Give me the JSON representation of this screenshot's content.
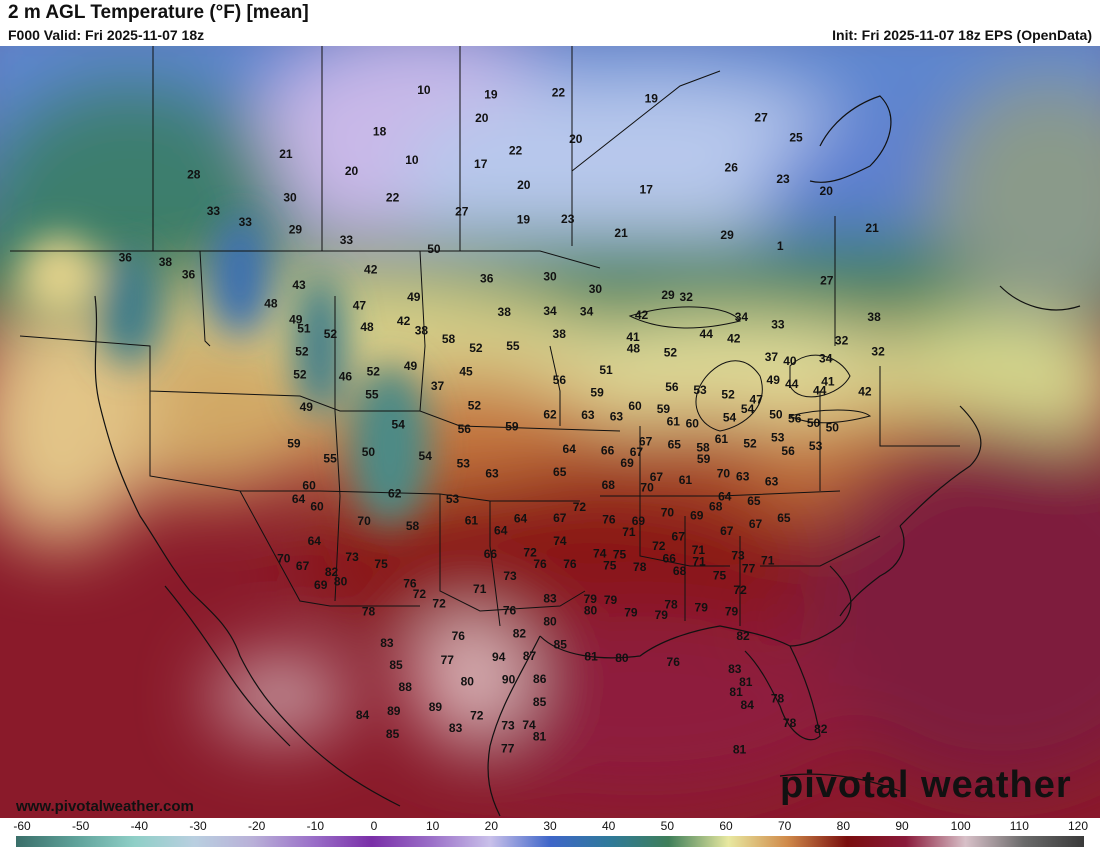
{
  "header": {
    "title": "2 m AGL Temperature (°F) [mean]",
    "valid": "F000 Valid: Fri 2025-11-07 18z",
    "init": "Init: Fri 2025-11-07 18z EPS (OpenData)"
  },
  "footer": {
    "credit": "www.pivotalweather.com",
    "brand": "pivotal weather"
  },
  "colorbar": {
    "ticks": [
      "-60",
      "-50",
      "-40",
      "-30",
      "-20",
      "-10",
      "0",
      "10",
      "20",
      "30",
      "40",
      "50",
      "60",
      "70",
      "80",
      "90",
      "100",
      "110",
      "120"
    ],
    "stops": [
      "#3a6f6a",
      "#5fa29a",
      "#8fcfc7",
      "#b9cfe0",
      "#b9b0d8",
      "#9a6fc8",
      "#7a2fa8",
      "#9b6fc8",
      "#c9c0ea",
      "#3f66c9",
      "#2f7a9a",
      "#3f7f5a",
      "#e8e8a0",
      "#d08a4a",
      "#7a0e0e",
      "#8a1a3a",
      "#d8c0c8",
      "#6a6a6a",
      "#3a3a3a"
    ]
  },
  "map": {
    "legend_label": "°F",
    "points": [
      {
        "v": "28",
        "lon": -139,
        "lat": 62
      },
      {
        "v": "21",
        "lon": -128,
        "lat": 61
      },
      {
        "v": "10",
        "lon": -112,
        "lat": 64
      },
      {
        "v": "19",
        "lon": -104,
        "lat": 63
      },
      {
        "v": "22",
        "lon": -96,
        "lat": 63
      },
      {
        "v": "19",
        "lon": -85,
        "lat": 63
      },
      {
        "v": "27",
        "lon": -72,
        "lat": 63
      },
      {
        "v": "25",
        "lon": -68,
        "lat": 62
      },
      {
        "v": "36",
        "lon": -146,
        "lat": 57
      },
      {
        "v": "33",
        "lon": -136,
        "lat": 58
      },
      {
        "v": "18",
        "lon": -117,
        "lat": 61
      },
      {
        "v": "20",
        "lon": -105,
        "lat": 61
      },
      {
        "v": "38",
        "lon": -141,
        "lat": 55
      },
      {
        "v": "33",
        "lon": -132,
        "lat": 56
      },
      {
        "v": "30",
        "lon": -127,
        "lat": 57
      },
      {
        "v": "20",
        "lon": -120,
        "lat": 58
      },
      {
        "v": "10",
        "lon": -113,
        "lat": 58
      },
      {
        "v": "17",
        "lon": -105,
        "lat": 57
      },
      {
        "v": "22",
        "lon": -101,
        "lat": 58
      },
      {
        "v": "20",
        "lon": -94,
        "lat": 59
      },
      {
        "v": "26",
        "lon": -76,
        "lat": 58
      },
      {
        "v": "23",
        "lon": -70,
        "lat": 58
      },
      {
        "v": "20",
        "lon": -65,
        "lat": 58
      },
      {
        "v": "21",
        "lon": -60,
        "lat": 56
      },
      {
        "v": "36",
        "lon": -138,
        "lat": 53
      },
      {
        "v": "29",
        "lon": -126,
        "lat": 54
      },
      {
        "v": "22",
        "lon": -115,
        "lat": 55
      },
      {
        "v": "20",
        "lon": -100,
        "lat": 55
      },
      {
        "v": "17",
        "lon": -86,
        "lat": 55
      },
      {
        "v": "48",
        "lon": -128,
        "lat": 48
      },
      {
        "v": "43",
        "lon": -125,
        "lat": 49
      },
      {
        "v": "33",
        "lon": -120,
        "lat": 52
      },
      {
        "v": "50",
        "lon": -110,
        "lat": 50
      },
      {
        "v": "27",
        "lon": -107,
        "lat": 53
      },
      {
        "v": "19",
        "lon": -100,
        "lat": 52
      },
      {
        "v": "23",
        "lon": -95,
        "lat": 52
      },
      {
        "v": "21",
        "lon": -89,
        "lat": 51
      },
      {
        "v": "29",
        "lon": -77,
        "lat": 52
      },
      {
        "v": "1",
        "lon": -71,
        "lat": 52
      },
      {
        "v": "27",
        "lon": -66,
        "lat": 50
      },
      {
        "v": "38",
        "lon": -61,
        "lat": 48
      },
      {
        "v": "49",
        "lon": -125,
        "lat": 46
      },
      {
        "v": "42",
        "lon": -117,
        "lat": 49
      },
      {
        "v": "51",
        "lon": -124,
        "lat": 45
      },
      {
        "v": "47",
        "lon": -118,
        "lat": 46
      },
      {
        "v": "49",
        "lon": -112,
        "lat": 46
      },
      {
        "v": "36",
        "lon": -104,
        "lat": 47
      },
      {
        "v": "30",
        "lon": -97,
        "lat": 47
      },
      {
        "v": "30",
        "lon": -92,
        "lat": 46
      },
      {
        "v": "29",
        "lon": -84,
        "lat": 46
      },
      {
        "v": "32",
        "lon": -82,
        "lat": 46
      },
      {
        "v": "34",
        "lon": -76,
        "lat": 45
      },
      {
        "v": "33",
        "lon": -72,
        "lat": 45
      },
      {
        "v": "32",
        "lon": -65,
        "lat": 45
      },
      {
        "v": "32",
        "lon": -61,
        "lat": 45
      },
      {
        "v": "52",
        "lon": -121,
        "lat": 44
      },
      {
        "v": "48",
        "lon": -117,
        "lat": 44
      },
      {
        "v": "42",
        "lon": -113,
        "lat": 44
      },
      {
        "v": "38",
        "lon": -102,
        "lat": 44
      },
      {
        "v": "34",
        "lon": -97,
        "lat": 44
      },
      {
        "v": "34",
        "lon": -93,
        "lat": 44
      },
      {
        "v": "42",
        "lon": -87,
        "lat": 44
      },
      {
        "v": "44",
        "lon": -80,
        "lat": 43
      },
      {
        "v": "42",
        "lon": -77,
        "lat": 43
      },
      {
        "v": "34",
        "lon": -67,
        "lat": 43
      },
      {
        "v": "52",
        "lon": -124,
        "lat": 43
      },
      {
        "v": "38",
        "lon": -111,
        "lat": 43
      },
      {
        "v": "58",
        "lon": -108,
        "lat": 42
      },
      {
        "v": "38",
        "lon": -96,
        "lat": 42
      },
      {
        "v": "41",
        "lon": -88,
        "lat": 42
      },
      {
        "v": "37",
        "lon": -73,
        "lat": 42
      },
      {
        "v": "40",
        "lon": -71,
        "lat": 42
      },
      {
        "v": "41",
        "lon": -67,
        "lat": 41
      },
      {
        "v": "42",
        "lon": -63,
        "lat": 41
      },
      {
        "v": "52",
        "lon": -124,
        "lat": 41
      },
      {
        "v": "46",
        "lon": -119,
        "lat": 40
      },
      {
        "v": "52",
        "lon": -116,
        "lat": 40
      },
      {
        "v": "49",
        "lon": -112,
        "lat": 40
      },
      {
        "v": "52",
        "lon": -105,
        "lat": 41
      },
      {
        "v": "55",
        "lon": -101,
        "lat": 41
      },
      {
        "v": "52",
        "lon": -84,
        "lat": 41
      },
      {
        "v": "48",
        "lon": -88,
        "lat": 41
      },
      {
        "v": "49",
        "lon": -73,
        "lat": 40
      },
      {
        "v": "44",
        "lon": -71,
        "lat": 40
      },
      {
        "v": "44",
        "lon": -68,
        "lat": 40
      },
      {
        "v": "49",
        "lon": -123,
        "lat": 38
      },
      {
        "v": "55",
        "lon": -116,
        "lat": 38
      },
      {
        "v": "37",
        "lon": -109,
        "lat": 38
      },
      {
        "v": "45",
        "lon": -106,
        "lat": 39
      },
      {
        "v": "56",
        "lon": -96,
        "lat": 38
      },
      {
        "v": "51",
        "lon": -91,
        "lat": 39
      },
      {
        "v": "56",
        "lon": -84,
        "lat": 38
      },
      {
        "v": "53",
        "lon": -81,
        "lat": 38
      },
      {
        "v": "52",
        "lon": -78,
        "lat": 38
      },
      {
        "v": "54",
        "lon": -76,
        "lat": 37
      },
      {
        "v": "50",
        "lon": -73,
        "lat": 37
      },
      {
        "v": "47",
        "lon": -75,
        "lat": 38
      },
      {
        "v": "56",
        "lon": -71,
        "lat": 37
      },
      {
        "v": "50",
        "lon": -69,
        "lat": 37
      },
      {
        "v": "50",
        "lon": -67,
        "lat": 37
      },
      {
        "v": "59",
        "lon": -124,
        "lat": 35
      },
      {
        "v": "54",
        "lon": -113,
        "lat": 35
      },
      {
        "v": "52",
        "lon": -105,
        "lat": 36
      },
      {
        "v": "59",
        "lon": -92,
        "lat": 37
      },
      {
        "v": "60",
        "lon": -88,
        "lat": 36
      },
      {
        "v": "59",
        "lon": -85,
        "lat": 36
      },
      {
        "v": "61",
        "lon": -84,
        "lat": 35
      },
      {
        "v": "54",
        "lon": -78,
        "lat": 36
      },
      {
        "v": "53",
        "lon": -73,
        "lat": 35
      },
      {
        "v": "53",
        "lon": -69,
        "lat": 35
      },
      {
        "v": "55",
        "lon": -120,
        "lat": 33
      },
      {
        "v": "50",
        "lon": -116,
        "lat": 33
      },
      {
        "v": "56",
        "lon": -106,
        "lat": 34
      },
      {
        "v": "59",
        "lon": -101,
        "lat": 34
      },
      {
        "v": "62",
        "lon": -97,
        "lat": 35
      },
      {
        "v": "63",
        "lon": -93,
        "lat": 35
      },
      {
        "v": "63",
        "lon": -90,
        "lat": 35
      },
      {
        "v": "60",
        "lon": -82,
        "lat": 35
      },
      {
        "v": "61",
        "lon": -79,
        "lat": 34
      },
      {
        "v": "52",
        "lon": -76,
        "lat": 34
      },
      {
        "v": "56",
        "lon": -72,
        "lat": 34
      },
      {
        "v": "60",
        "lon": -122,
        "lat": 31
      },
      {
        "v": "54",
        "lon": -110,
        "lat": 32
      },
      {
        "v": "64",
        "lon": -95,
        "lat": 32
      },
      {
        "v": "66",
        "lon": -91,
        "lat": 32
      },
      {
        "v": "67",
        "lon": -88,
        "lat": 32
      },
      {
        "v": "67",
        "lon": -87,
        "lat": 33
      },
      {
        "v": "65",
        "lon": -84,
        "lat": 33
      },
      {
        "v": "58",
        "lon": -81,
        "lat": 33
      },
      {
        "v": "59",
        "lon": -81,
        "lat": 32
      },
      {
        "v": "53",
        "lon": -106,
        "lat": 31
      },
      {
        "v": "64",
        "lon": -123,
        "lat": 30
      },
      {
        "v": "60",
        "lon": -121,
        "lat": 29
      },
      {
        "v": "63",
        "lon": -103,
        "lat": 30
      },
      {
        "v": "65",
        "lon": -96,
        "lat": 30
      },
      {
        "v": "69",
        "lon": -89,
        "lat": 31
      },
      {
        "v": "67",
        "lon": -86,
        "lat": 30
      },
      {
        "v": "61",
        "lon": -83,
        "lat": 30
      },
      {
        "v": "70",
        "lon": -79,
        "lat": 31
      },
      {
        "v": "63",
        "lon": -77,
        "lat": 31
      },
      {
        "v": "63",
        "lon": -74,
        "lat": 31
      },
      {
        "v": "62",
        "lon": -113,
        "lat": 29
      },
      {
        "v": "53",
        "lon": -107,
        "lat": 28
      },
      {
        "v": "68",
        "lon": -91,
        "lat": 29
      },
      {
        "v": "70",
        "lon": -87,
        "lat": 29
      },
      {
        "v": "65",
        "lon": -76,
        "lat": 29
      },
      {
        "v": "64",
        "lon": -79,
        "lat": 29
      },
      {
        "v": "65",
        "lon": -73,
        "lat": 28
      },
      {
        "v": "70",
        "lon": -116,
        "lat": 27
      },
      {
        "v": "64",
        "lon": -121,
        "lat": 26
      },
      {
        "v": "58",
        "lon": -111,
        "lat": 26
      },
      {
        "v": "61",
        "lon": -105,
        "lat": 26
      },
      {
        "v": "64",
        "lon": -100,
        "lat": 26
      },
      {
        "v": "67",
        "lon": -96,
        "lat": 26
      },
      {
        "v": "72",
        "lon": -94,
        "lat": 27
      },
      {
        "v": "76",
        "lon": -91,
        "lat": 26
      },
      {
        "v": "71",
        "lon": -89,
        "lat": 25
      },
      {
        "v": "70",
        "lon": -85,
        "lat": 27
      },
      {
        "v": "69",
        "lon": -82,
        "lat": 27
      },
      {
        "v": "68",
        "lon": -80,
        "lat": 28
      },
      {
        "v": "67",
        "lon": -79,
        "lat": 26
      },
      {
        "v": "67",
        "lon": -76,
        "lat": 27
      },
      {
        "v": "70",
        "lon": -124,
        "lat": 25
      },
      {
        "v": "73",
        "lon": -117,
        "lat": 24
      },
      {
        "v": "64",
        "lon": -102,
        "lat": 25
      },
      {
        "v": "69",
        "lon": -88,
        "lat": 26
      },
      {
        "v": "72",
        "lon": -86,
        "lat": 24
      },
      {
        "v": "67",
        "lon": -84,
        "lat": 25
      },
      {
        "v": "71",
        "lon": -82,
        "lat": 24
      },
      {
        "v": "73",
        "lon": -78,
        "lat": 24
      },
      {
        "v": "71",
        "lon": -75,
        "lat": 24
      },
      {
        "v": "67",
        "lon": -122,
        "lat": 24
      },
      {
        "v": "82",
        "lon": -119,
        "lat": 23
      },
      {
        "v": "75",
        "lon": -114,
        "lat": 23
      },
      {
        "v": "66",
        "lon": -103,
        "lat": 23
      },
      {
        "v": "72",
        "lon": -99,
        "lat": 23
      },
      {
        "v": "74",
        "lon": -96,
        "lat": 24
      },
      {
        "v": "74",
        "lon": -92,
        "lat": 23
      },
      {
        "v": "75",
        "lon": -90,
        "lat": 23
      },
      {
        "v": "66",
        "lon": -85,
        "lat": 23
      },
      {
        "v": "71",
        "lon": -82,
        "lat": 23
      },
      {
        "v": "77",
        "lon": -77,
        "lat": 23
      },
      {
        "v": "69",
        "lon": -120,
        "lat": 22
      },
      {
        "v": "80",
        "lon": -118,
        "lat": 22
      },
      {
        "v": "76",
        "lon": -111,
        "lat": 21
      },
      {
        "v": "73",
        "lon": -101,
        "lat": 21
      },
      {
        "v": "76",
        "lon": -98,
        "lat": 22
      },
      {
        "v": "76",
        "lon": -95,
        "lat": 22
      },
      {
        "v": "75",
        "lon": -91,
        "lat": 22
      },
      {
        "v": "78",
        "lon": -88,
        "lat": 22
      },
      {
        "v": "68",
        "lon": -84,
        "lat": 22
      },
      {
        "v": "75",
        "lon": -80,
        "lat": 22
      },
      {
        "v": "72",
        "lon": -78,
        "lat": 21
      },
      {
        "v": "72",
        "lon": -110,
        "lat": 20
      },
      {
        "v": "71",
        "lon": -104,
        "lat": 20
      },
      {
        "v": "78",
        "lon": -115,
        "lat": 19
      },
      {
        "v": "72",
        "lon": -108,
        "lat": 19
      },
      {
        "v": "76",
        "lon": -101,
        "lat": 18
      },
      {
        "v": "83",
        "lon": -97,
        "lat": 19
      },
      {
        "v": "79",
        "lon": -93,
        "lat": 19
      },
      {
        "v": "79",
        "lon": -91,
        "lat": 19
      },
      {
        "v": "78",
        "lon": -85,
        "lat": 19
      },
      {
        "v": "79",
        "lon": -82,
        "lat": 19
      },
      {
        "v": "79",
        "lon": -79,
        "lat": 19
      },
      {
        "v": "80",
        "lon": -93,
        "lat": 18
      },
      {
        "v": "79",
        "lon": -89,
        "lat": 18
      },
      {
        "v": "79",
        "lon": -86,
        "lat": 18
      },
      {
        "v": "83",
        "lon": -113,
        "lat": 16
      },
      {
        "v": "76",
        "lon": -106,
        "lat": 16
      },
      {
        "v": "82",
        "lon": -100,
        "lat": 16
      },
      {
        "v": "80",
        "lon": -97,
        "lat": 17
      },
      {
        "v": "82",
        "lon": -78,
        "lat": 17
      },
      {
        "v": "85",
        "lon": -112,
        "lat": 14
      },
      {
        "v": "77",
        "lon": -107,
        "lat": 14
      },
      {
        "v": "94",
        "lon": -102,
        "lat": 14
      },
      {
        "v": "87",
        "lon": -99,
        "lat": 14
      },
      {
        "v": "85",
        "lon": -96,
        "lat": 15
      },
      {
        "v": "81",
        "lon": -93,
        "lat": 14
      },
      {
        "v": "80",
        "lon": -90,
        "lat": 14
      },
      {
        "v": "76",
        "lon": -85,
        "lat": 14
      },
      {
        "v": "83",
        "lon": -79,
        "lat": 14
      },
      {
        "v": "81",
        "lon": -78,
        "lat": 13
      },
      {
        "v": "88",
        "lon": -111,
        "lat": 12
      },
      {
        "v": "80",
        "lon": -105,
        "lat": 12
      },
      {
        "v": "90",
        "lon": -101,
        "lat": 12
      },
      {
        "v": "86",
        "lon": -98,
        "lat": 12
      },
      {
        "v": "81",
        "lon": -79,
        "lat": 12
      },
      {
        "v": "84",
        "lon": -78,
        "lat": 11
      },
      {
        "v": "78",
        "lon": -75,
        "lat": 12
      },
      {
        "v": "84",
        "lon": -115,
        "lat": 10
      },
      {
        "v": "89",
        "lon": -112,
        "lat": 10
      },
      {
        "v": "89",
        "lon": -108,
        "lat": 10
      },
      {
        "v": "85",
        "lon": -98,
        "lat": 10
      },
      {
        "v": "78",
        "lon": -74,
        "lat": 10
      },
      {
        "v": "82",
        "lon": -71,
        "lat": 10
      },
      {
        "v": "85",
        "lon": -112,
        "lat": 8
      },
      {
        "v": "83",
        "lon": -106,
        "lat": 8
      },
      {
        "v": "72",
        "lon": -104,
        "lat": 9
      },
      {
        "v": "73",
        "lon": -101,
        "lat": 8
      },
      {
        "v": "74",
        "lon": -99,
        "lat": 8
      },
      {
        "v": "81",
        "lon": -98,
        "lat": 7
      },
      {
        "v": "77",
        "lon": -101,
        "lat": 6
      },
      {
        "v": "81",
        "lon": -79,
        "lat": 7
      }
    ]
  }
}
